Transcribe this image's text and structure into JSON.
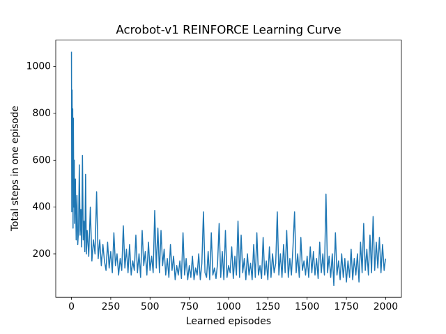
{
  "chart_data": {
    "type": "line",
    "title": "Acrobot-v1 REINFORCE Learning Curve",
    "x_label": "Learned episodes",
    "y_label": "Total steps in one episode",
    "color": "#1f77b4",
    "xlim": [
      -100,
      2100
    ],
    "ylim": [
      15,
      1113
    ],
    "xticks": [
      0,
      250,
      500,
      750,
      1000,
      1250,
      1500,
      1750,
      2000
    ],
    "yticks": [
      200,
      400,
      600,
      800,
      1000
    ],
    "x": [
      0,
      2,
      4,
      6,
      8,
      10,
      12,
      15,
      18,
      20,
      25,
      30,
      35,
      40,
      45,
      50,
      55,
      60,
      65,
      70,
      75,
      80,
      85,
      90,
      95,
      100,
      110,
      120,
      130,
      140,
      150,
      160,
      170,
      180,
      190,
      200,
      210,
      220,
      230,
      240,
      250,
      260,
      270,
      280,
      290,
      300,
      310,
      320,
      330,
      340,
      350,
      360,
      370,
      380,
      390,
      400,
      410,
      420,
      430,
      440,
      450,
      460,
      470,
      480,
      490,
      500,
      510,
      520,
      530,
      540,
      550,
      560,
      570,
      580,
      590,
      600,
      610,
      620,
      630,
      640,
      650,
      660,
      670,
      680,
      690,
      700,
      710,
      720,
      730,
      740,
      750,
      760,
      770,
      780,
      790,
      800,
      810,
      820,
      830,
      840,
      850,
      860,
      870,
      880,
      890,
      900,
      910,
      920,
      930,
      940,
      950,
      960,
      970,
      980,
      990,
      1000,
      1010,
      1020,
      1030,
      1040,
      1050,
      1060,
      1070,
      1080,
      1090,
      1100,
      1110,
      1120,
      1130,
      1140,
      1150,
      1160,
      1170,
      1180,
      1190,
      1200,
      1210,
      1220,
      1230,
      1240,
      1250,
      1260,
      1270,
      1280,
      1290,
      1300,
      1310,
      1320,
      1330,
      1340,
      1350,
      1360,
      1370,
      1380,
      1390,
      1400,
      1410,
      1420,
      1430,
      1440,
      1450,
      1460,
      1470,
      1480,
      1490,
      1500,
      1510,
      1520,
      1530,
      1540,
      1550,
      1560,
      1570,
      1580,
      1590,
      1600,
      1610,
      1620,
      1630,
      1640,
      1650,
      1660,
      1670,
      1680,
      1690,
      1700,
      1710,
      1720,
      1730,
      1740,
      1750,
      1760,
      1770,
      1780,
      1790,
      1800,
      1810,
      1820,
      1830,
      1840,
      1850,
      1860,
      1870,
      1880,
      1890,
      1900,
      1910,
      1920,
      1930,
      1940,
      1950,
      1960,
      1970,
      1980,
      1990,
      1999
    ],
    "values": [
      1063,
      380,
      900,
      520,
      820,
      310,
      780,
      400,
      600,
      330,
      520,
      260,
      450,
      240,
      300,
      580,
      280,
      390,
      230,
      620,
      260,
      340,
      210,
      540,
      200,
      300,
      190,
      400,
      170,
      260,
      200,
      465,
      180,
      260,
      150,
      240,
      170,
      130,
      250,
      140,
      210,
      120,
      290,
      150,
      200,
      110,
      180,
      130,
      320,
      140,
      220,
      120,
      240,
      110,
      170,
      130,
      280,
      120,
      200,
      100,
      300,
      150,
      210,
      110,
      250,
      130,
      190,
      120,
      385,
      140,
      310,
      120,
      300,
      150,
      220,
      110,
      180,
      100,
      240,
      130,
      190,
      90,
      150,
      110,
      170,
      95,
      290,
      110,
      180,
      90,
      150,
      100,
      190,
      90,
      140,
      110,
      200,
      90,
      160,
      380,
      120,
      100,
      210,
      90,
      290,
      110,
      140,
      95,
      160,
      330,
      100,
      210,
      90,
      300,
      100,
      150,
      120,
      230,
      95,
      190,
      110,
      340,
      100,
      280,
      120,
      180,
      90,
      200,
      110,
      160,
      90,
      240,
      100,
      290,
      110,
      150,
      95,
      270,
      110,
      170,
      90,
      230,
      100,
      200,
      120,
      160,
      380,
      110,
      200,
      100,
      240,
      120,
      300,
      100,
      180,
      110,
      230,
      380,
      120,
      200,
      100,
      270,
      130,
      170,
      110,
      190,
      100,
      230,
      120,
      210,
      110,
      180,
      95,
      250,
      120,
      200,
      110,
      455,
      120,
      190,
      100,
      200,
      65,
      290,
      110,
      170,
      90,
      200,
      100,
      180,
      80,
      170,
      100,
      220,
      90,
      180,
      110,
      200,
      80,
      250,
      120,
      330,
      130,
      220,
      110,
      280,
      120,
      360,
      130,
      250,
      140,
      270,
      120,
      240,
      130,
      180
    ]
  }
}
